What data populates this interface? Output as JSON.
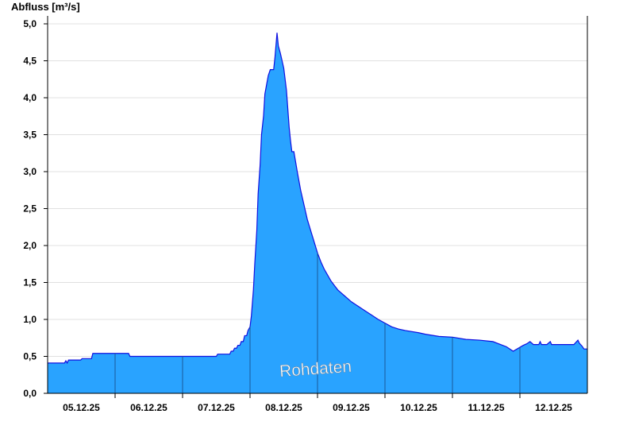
{
  "chart_data": {
    "type": "area",
    "ylabel": "Abfluss [m³/s]",
    "watermark": "Rohdaten",
    "ylim": [
      0,
      5.0
    ],
    "xlim": [
      4.5,
      12.5
    ],
    "yticks": [
      "0,0",
      "0,5",
      "1,0",
      "1,5",
      "2,0",
      "2,5",
      "3,0",
      "3,5",
      "4,0",
      "4,5",
      "5,0"
    ],
    "yticks_values": [
      0,
      0.5,
      1.0,
      1.5,
      2.0,
      2.5,
      3.0,
      3.5,
      4.0,
      4.5,
      5.0
    ],
    "xticks": [
      "05.12.25",
      "06.12.25",
      "07.12.25",
      "08.12.25",
      "09.12.25",
      "10.12.25",
      "11.12.25",
      "12.12.25"
    ],
    "xticks_values": [
      5,
      6,
      7,
      8,
      9,
      10,
      11,
      12
    ],
    "day_boundaries": [
      5.5,
      6.5,
      7.5,
      8.5,
      9.5,
      10.5,
      11.5
    ],
    "grid": "horizontal",
    "colors": {
      "fill": "#29a3ff",
      "line": "#1010e0",
      "day_line": "#1a5a9a",
      "grid": "#e0e0e0"
    },
    "series": [
      {
        "x": [
          4.5,
          4.75,
          4.77,
          4.79,
          4.81,
          4.85,
          4.99,
          5.01,
          5.15,
          5.17,
          5.5,
          5.7,
          5.72,
          6.5,
          7.0,
          7.02,
          7.2,
          7.22,
          7.25,
          7.27,
          7.3,
          7.32,
          7.35,
          7.37,
          7.4,
          7.42,
          7.45,
          7.47,
          7.5,
          7.52,
          7.55,
          7.57,
          7.6,
          7.62,
          7.65,
          7.67,
          7.7,
          7.72,
          7.75,
          7.77,
          7.8,
          7.82,
          7.85,
          7.87,
          7.9,
          7.92,
          7.95,
          8.0,
          8.04,
          8.06,
          8.08,
          8.1,
          8.12,
          8.15,
          8.2,
          8.25,
          8.3,
          8.35,
          8.4,
          8.45,
          8.5,
          8.55,
          8.6,
          8.65,
          8.7,
          8.75,
          8.8,
          8.85,
          8.9,
          8.95,
          9.0,
          9.1,
          9.2,
          9.3,
          9.4,
          9.5,
          9.6,
          9.7,
          9.8,
          10.0,
          10.1,
          10.3,
          10.5,
          10.7,
          10.9,
          11.1,
          11.3,
          11.4,
          11.55,
          11.6,
          11.65,
          11.7,
          11.78,
          11.8,
          11.82,
          11.9,
          11.95,
          11.97,
          11.99,
          12.02,
          12.04,
          12.06,
          12.1,
          12.2,
          12.3,
          12.36,
          12.38,
          12.4,
          12.42,
          12.45,
          12.47,
          12.5
        ],
        "y": [
          0.41,
          0.41,
          0.44,
          0.41,
          0.45,
          0.45,
          0.45,
          0.47,
          0.47,
          0.54,
          0.54,
          0.54,
          0.5,
          0.5,
          0.5,
          0.53,
          0.53,
          0.57,
          0.57,
          0.61,
          0.61,
          0.65,
          0.65,
          0.7,
          0.7,
          0.78,
          0.78,
          0.85,
          0.9,
          1.05,
          1.4,
          1.75,
          2.2,
          2.7,
          3.1,
          3.5,
          3.75,
          4.05,
          4.2,
          4.3,
          4.38,
          4.38,
          4.38,
          4.55,
          4.88,
          4.7,
          4.6,
          4.4,
          4.1,
          3.85,
          3.6,
          3.42,
          3.27,
          3.27,
          3.0,
          2.75,
          2.55,
          2.35,
          2.2,
          2.05,
          1.9,
          1.78,
          1.68,
          1.6,
          1.52,
          1.46,
          1.4,
          1.36,
          1.32,
          1.28,
          1.24,
          1.18,
          1.12,
          1.06,
          1.0,
          0.95,
          0.9,
          0.87,
          0.85,
          0.82,
          0.8,
          0.77,
          0.76,
          0.73,
          0.72,
          0.7,
          0.63,
          0.57,
          0.65,
          0.67,
          0.7,
          0.66,
          0.66,
          0.7,
          0.66,
          0.66,
          0.7,
          0.66,
          0.66,
          0.66,
          0.66,
          0.66,
          0.66,
          0.66,
          0.66,
          0.72,
          0.68,
          0.66,
          0.64,
          0.6,
          0.6,
          0.6
        ]
      }
    ]
  }
}
